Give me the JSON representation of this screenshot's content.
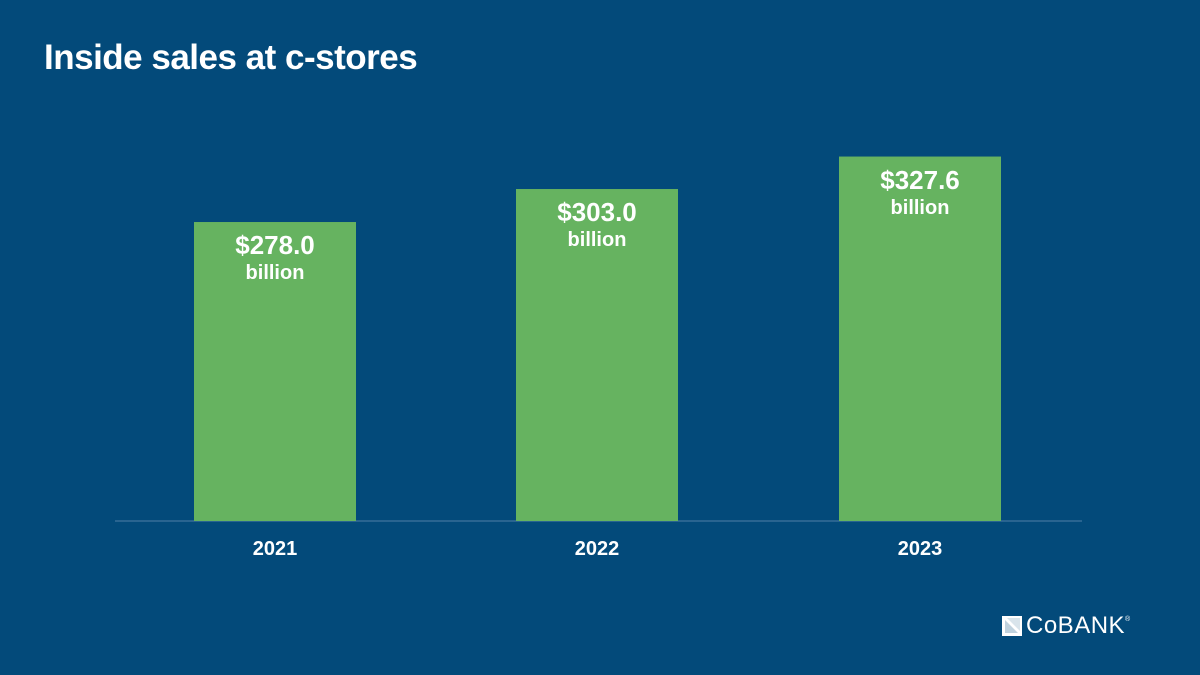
{
  "chart_data": {
    "type": "bar",
    "title": "Inside sales at c-stores",
    "categories": [
      "2021",
      "2022",
      "2023"
    ],
    "values": [
      278.0,
      303.0,
      327.6
    ],
    "data_labels": [
      "$278.0",
      "$303.0",
      "$327.6"
    ],
    "data_label_unit": "billion",
    "xlabel": "",
    "ylabel": "",
    "ylim": [
      51.5,
      330
    ],
    "grid": false,
    "bar_color": "#66b360",
    "background_color": "#034a7a"
  },
  "logo": {
    "text": "CoBANK",
    "trademark": "®"
  }
}
